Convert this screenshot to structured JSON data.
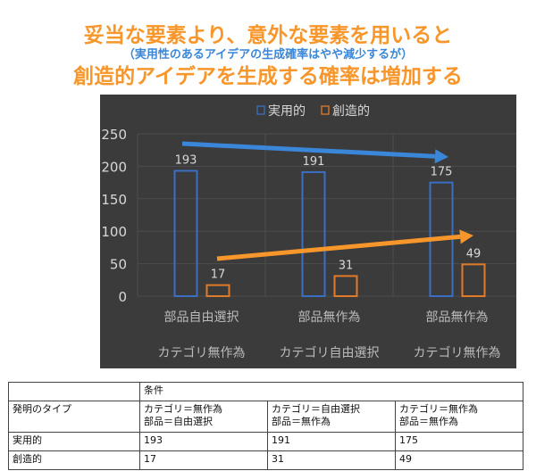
{
  "title": {
    "line1": "妥当な要素より、意外な要素を用いると",
    "line2": "（実用性のあるアイデアの生成確率はやや減少するが）",
    "line3": "創造的アイデアを生成する確率は増加する"
  },
  "chart_data": {
    "type": "bar",
    "categories": [
      {
        "parts": "部品自由選択",
        "category": "カテゴリ無作為"
      },
      {
        "parts": "部品無作為",
        "category": "カテゴリ自由選択"
      },
      {
        "parts": "部品無作為",
        "category": "カテゴリ無作為"
      }
    ],
    "series": [
      {
        "name": "実用的",
        "values": [
          193,
          191,
          175
        ],
        "color": "#3a6fc4"
      },
      {
        "name": "創造的",
        "values": [
          17,
          31,
          49
        ],
        "color": "#e07b2a"
      }
    ],
    "ylim": [
      0,
      250
    ],
    "yticks": [
      "0",
      "50",
      "100",
      "150",
      "200",
      "250"
    ],
    "grid": true,
    "legend": "top",
    "background": "#3b3b3b",
    "arrows": [
      {
        "color": "#3a86d8",
        "trend": "decreasing"
      },
      {
        "color": "#f7962b",
        "trend": "increasing"
      }
    ]
  },
  "table": {
    "header": [
      "",
      "条件"
    ],
    "rows": [
      [
        "発明のタイプ",
        "カテゴリ＝無作為\n部品＝自由選択",
        "カテゴリ＝自由選択\n部品＝無作為",
        "カテゴリ＝無作為\n部品＝無作為"
      ],
      [
        "実用的",
        "193",
        "191",
        "175"
      ],
      [
        "創造的",
        "17",
        "31",
        "49"
      ]
    ]
  }
}
